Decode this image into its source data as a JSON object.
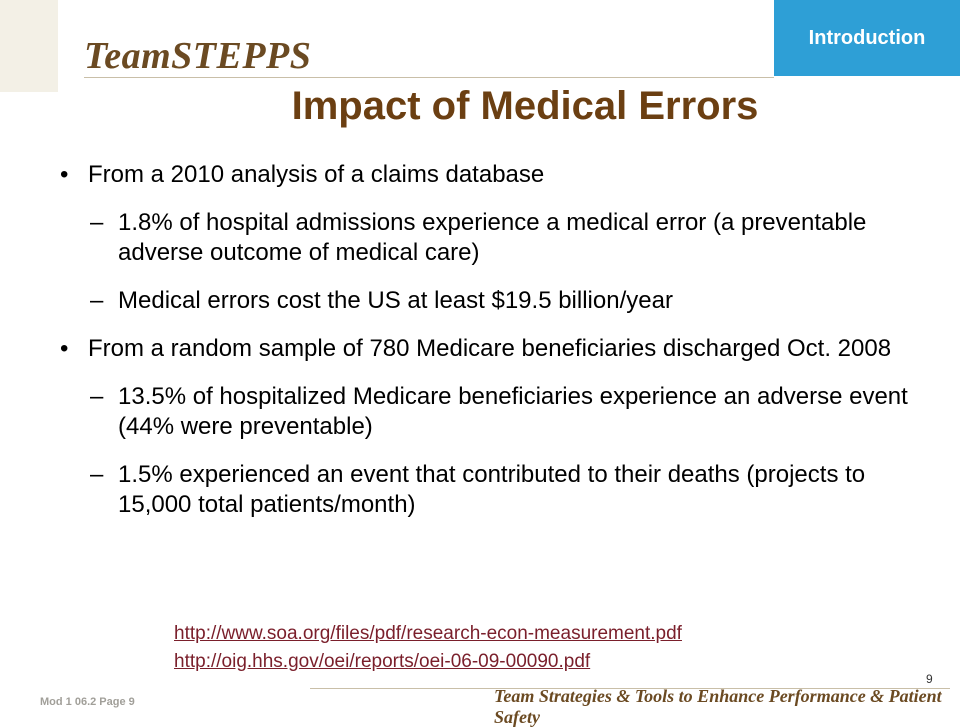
{
  "header": {
    "brand": "TeamSTEPPS",
    "section_tab": "Introduction"
  },
  "slide": {
    "title": "Impact of Medical Errors",
    "bullets": [
      {
        "text": "From a 2010 analysis of a claims database",
        "subs": [
          "1.8% of hospital admissions experience a medical error (a preventable adverse outcome of medical care)",
          "Medical errors cost the US at least $19.5 billion/year"
        ]
      },
      {
        "text": "From a random sample of 780 Medicare beneficiaries discharged Oct. 2008",
        "subs": [
          "13.5% of hospitalized Medicare beneficiaries experience an adverse event (44% were preventable)",
          "1.5% experienced an event that contributed to their deaths (projects to 15,000 total patients/month)"
        ]
      }
    ],
    "links": [
      "http://www.soa.org/files/pdf/research-econ-measurement.pdf",
      "http://oig.hhs.gov/oei/reports/oei-06-09-00090.pdf"
    ]
  },
  "footer": {
    "module_page": "Mod 1 06.2   Page 9",
    "page_number": "9",
    "tagline": "Team Strategies & Tools to Enhance Performance & Patient Safety"
  }
}
